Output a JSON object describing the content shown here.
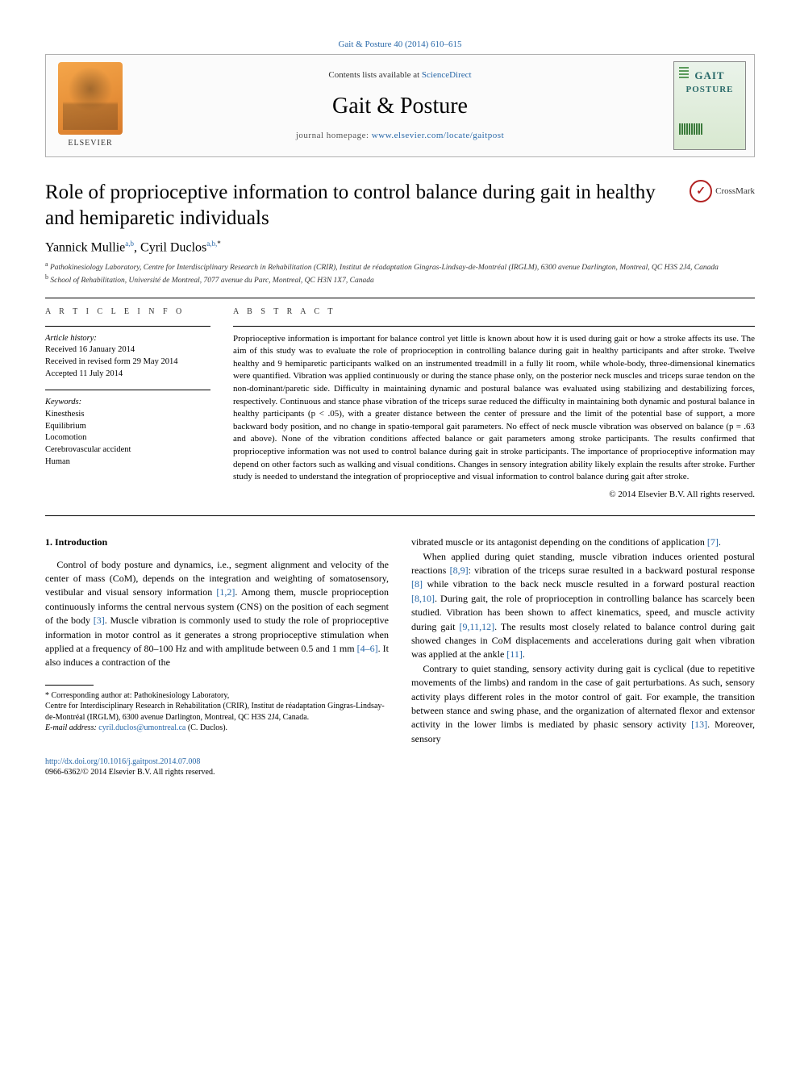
{
  "header": {
    "citation": "Gait & Posture 40 (2014) 610–615",
    "contents_prefix": "Contents lists available at ",
    "contents_link": "ScienceDirect",
    "journal_title": "Gait & Posture",
    "homepage_prefix": "journal homepage: ",
    "homepage_link": "www.elsevier.com/locate/gaitpost",
    "elsevier_label": "ELSEVIER",
    "cover_line1": "GAIT",
    "cover_line2": "POSTURE"
  },
  "crossmark_label": "CrossMark",
  "title": "Role of proprioceptive information to control balance during gait in healthy and hemiparetic individuals",
  "authors_html": "Yannick Mullie",
  "author1_sup": "a,b",
  "author2": ", Cyril Duclos",
  "author2_sup": "a,b,",
  "author2_star": "*",
  "affiliations": {
    "a": "Pathokinesiology Laboratory, Centre for Interdisciplinary Research in Rehabilitation (CRIR), Institut de réadaptation Gingras-Lindsay-de-Montréal (IRGLM), 6300 avenue Darlington, Montreal, QC H3S 2J4, Canada",
    "b": "School of Rehabilitation, Université de Montreal, 7077 avenue du Parc, Montreal, QC H3N 1X7, Canada"
  },
  "article_info": {
    "label": "A R T I C L E   I N F O",
    "history_label": "Article history:",
    "received": "Received 16 January 2014",
    "revised": "Received in revised form 29 May 2014",
    "accepted": "Accepted 11 July 2014",
    "keywords_label": "Keywords:",
    "keywords": [
      "Kinesthesis",
      "Equilibrium",
      "Locomotion",
      "Cerebrovascular accident",
      "Human"
    ]
  },
  "abstract": {
    "label": "A B S T R A C T",
    "text": "Proprioceptive information is important for balance control yet little is known about how it is used during gait or how a stroke affects its use. The aim of this study was to evaluate the role of proprioception in controlling balance during gait in healthy participants and after stroke. Twelve healthy and 9 hemiparetic participants walked on an instrumented treadmill in a fully lit room, while whole-body, three-dimensional kinematics were quantified. Vibration was applied continuously or during the stance phase only, on the posterior neck muscles and triceps surae tendon on the non-dominant/paretic side. Difficulty in maintaining dynamic and postural balance was evaluated using stabilizing and destabilizing forces, respectively. Continuous and stance phase vibration of the triceps surae reduced the difficulty in maintaining both dynamic and postural balance in healthy participants (p < .05), with a greater distance between the center of pressure and the limit of the potential base of support, a more backward body position, and no change in spatio-temporal gait parameters. No effect of neck muscle vibration was observed on balance (p = .63 and above). None of the vibration conditions affected balance or gait parameters among stroke participants. The results confirmed that proprioceptive information was not used to control balance during gait in stroke participants. The importance of proprioceptive information may depend on other factors such as walking and visual conditions. Changes in sensory integration ability likely explain the results after stroke. Further study is needed to understand the integration of proprioceptive and visual information to control balance during gait after stroke.",
    "copyright": "© 2014 Elsevier B.V. All rights reserved."
  },
  "body": {
    "section_number": "1.",
    "section_title": "Introduction",
    "col1_p1_a": "Control of body posture and dynamics, i.e., segment alignment and velocity of the center of mass (CoM), depends on the integration and weighting of somatosensory, vestibular and visual sensory information ",
    "col1_p1_ref1": "[1,2]",
    "col1_p1_b": ". Among them, muscle proprioception continuously informs the central nervous system (CNS) on the position of each segment of the body ",
    "col1_p1_ref2": "[3]",
    "col1_p1_c": ". Muscle vibration is commonly used to study the role of proprioceptive information in motor control as it generates a strong proprioceptive stimulation when applied at a frequency of 80–100 Hz and with amplitude between 0.5 and 1 mm ",
    "col1_p1_ref3": "[4–6]",
    "col1_p1_d": ". It also induces a contraction of the",
    "col2_p1_a": "vibrated muscle or its antagonist depending on the conditions of application ",
    "col2_p1_ref1": "[7]",
    "col2_p1_b": ".",
    "col2_p2_a": "When applied during quiet standing, muscle vibration induces oriented postural reactions ",
    "col2_p2_ref1": "[8,9]",
    "col2_p2_b": ": vibration of the triceps surae resulted in a backward postural response ",
    "col2_p2_ref2": "[8]",
    "col2_p2_c": " while vibration to the back neck muscle resulted in a forward postural reaction ",
    "col2_p2_ref3": "[8,10]",
    "col2_p2_d": ". During gait, the role of proprioception in controlling balance has scarcely been studied. Vibration has been shown to affect kinematics, speed, and muscle activity during gait ",
    "col2_p2_ref4": "[9,11,12]",
    "col2_p2_e": ". The results most closely related to balance control during gait showed changes in CoM displacements and accelerations during gait when vibration was applied at the ankle ",
    "col2_p2_ref5": "[11]",
    "col2_p2_f": ".",
    "col2_p3_a": "Contrary to quiet standing, sensory activity during gait is cyclical (due to repetitive movements of the limbs) and random in the case of gait perturbations. As such, sensory activity plays different roles in the motor control of gait. For example, the transition between stance and swing phase, and the organization of alternated flexor and extensor activity in the lower limbs is mediated by phasic sensory activity ",
    "col2_p3_ref1": "[13]",
    "col2_p3_b": ". Moreover, sensory"
  },
  "footnote": {
    "star": "*",
    "corr_label": " Corresponding author at: Pathokinesiology Laboratory,",
    "corr_lines": "Centre for Interdisciplinary Research in Rehabilitation (CRIR), Institut de réadaptation Gingras-Lindsay-de-Montréal (IRGLM), 6300 avenue Darlington, Montreal, QC H3S 2J4, Canada.",
    "email_label": "E-mail address: ",
    "email": "cyril.duclos@umontreal.ca",
    "email_suffix": " (C. Duclos)."
  },
  "doi": {
    "link": "http://dx.doi.org/10.1016/j.gaitpost.2014.07.008",
    "issn_line": "0966-6362/© 2014 Elsevier B.V. All rights reserved."
  },
  "colors": {
    "link": "#2968a8",
    "text": "#000000",
    "border": "#b0b0b0"
  }
}
